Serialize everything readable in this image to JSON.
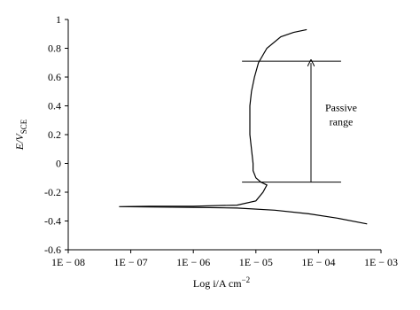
{
  "chart_data": {
    "type": "line",
    "xlabel": {
      "main": "Log i/A cm",
      "sup": "−2"
    },
    "ylabel": {
      "main": "E/V",
      "sub": "SCE"
    },
    "xscale": "log",
    "xlim": [
      1e-08,
      0.001
    ],
    "xticks": [
      {
        "value": 1e-08,
        "label": "1E − 08"
      },
      {
        "value": 1e-07,
        "label": "1E − 07"
      },
      {
        "value": 1e-06,
        "label": "1E − 06"
      },
      {
        "value": 1e-05,
        "label": "1E − 05"
      },
      {
        "value": 0.0001,
        "label": "1E − 04"
      },
      {
        "value": 0.001,
        "label": "1E − 03"
      }
    ],
    "ylim": [
      -0.6,
      1
    ],
    "yticks": [
      1,
      0.8,
      0.6,
      0.4,
      0.2,
      0,
      -0.2,
      -0.4,
      -0.6
    ],
    "series": [
      {
        "color": "#000000",
        "x": [
          0.0006,
          0.0002,
          7e-05,
          2e-05,
          5e-06,
          1e-06,
          2e-07,
          6.5e-08,
          2e-07,
          1e-06,
          5e-06,
          1e-05,
          1.3e-05,
          1.5e-05,
          1.2e-05,
          1e-05,
          9e-06,
          9e-06,
          8.5e-06,
          8e-06,
          8e-06,
          8e-06,
          8.5e-06,
          9.5e-06,
          1.1e-05,
          1.5e-05,
          2.5e-05,
          4e-05,
          6.5e-05
        ],
        "values": [
          -0.42,
          -0.38,
          -0.35,
          -0.325,
          -0.31,
          -0.305,
          -0.302,
          -0.3,
          -0.298,
          -0.297,
          -0.29,
          -0.26,
          -0.2,
          -0.15,
          -0.13,
          -0.1,
          -0.05,
          0,
          0.1,
          0.2,
          0.3,
          0.4,
          0.5,
          0.6,
          0.7,
          0.8,
          0.88,
          0.91,
          0.93
        ]
      }
    ],
    "passive_range": {
      "label": [
        "Passive",
        "range"
      ],
      "e_top": 0.71,
      "e_bottom": -0.13,
      "x_start": 6e-06,
      "x_end": 0.00023,
      "arrow_x": 7.6e-05
    }
  }
}
